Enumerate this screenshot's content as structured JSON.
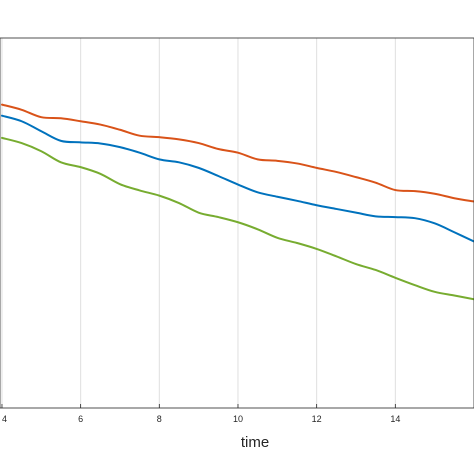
{
  "chart_data": {
    "type": "line",
    "title": "",
    "xlabel": "time",
    "ylabel": "",
    "xlim": [
      3.95,
      16.0
    ],
    "ylim": [
      0,
      1
    ],
    "grid": true,
    "x_ticks": [
      4,
      6,
      8,
      10,
      12,
      14
    ],
    "x_tick_labels": [
      "4",
      "6",
      "8",
      "10",
      "12",
      "14"
    ],
    "series": [
      {
        "color": "#d95319",
        "x": [
          4.0,
          4.5,
          5.0,
          5.5,
          6.0,
          6.5,
          7.0,
          7.5,
          8.0,
          8.5,
          9.0,
          9.5,
          10.0,
          10.5,
          11.0,
          11.5,
          12.0,
          12.5,
          13.0,
          13.5,
          14.0,
          14.5,
          15.0,
          15.5,
          16.0
        ],
        "y": [
          0.82,
          0.806,
          0.786,
          0.783,
          0.775,
          0.766,
          0.752,
          0.736,
          0.732,
          0.726,
          0.716,
          0.7,
          0.69,
          0.672,
          0.668,
          0.661,
          0.649,
          0.638,
          0.624,
          0.609,
          0.589,
          0.586,
          0.579,
          0.567,
          0.558
        ]
      },
      {
        "color": "#0072bd",
        "x": [
          4.0,
          4.5,
          5.0,
          5.5,
          6.0,
          6.5,
          7.0,
          7.5,
          8.0,
          8.5,
          9.0,
          9.5,
          10.0,
          10.5,
          11.0,
          11.5,
          12.0,
          12.5,
          13.0,
          13.5,
          14.0,
          14.5,
          15.0,
          15.5,
          16.0
        ],
        "y": [
          0.79,
          0.775,
          0.748,
          0.722,
          0.718,
          0.715,
          0.705,
          0.69,
          0.672,
          0.664,
          0.649,
          0.627,
          0.604,
          0.583,
          0.571,
          0.56,
          0.548,
          0.538,
          0.528,
          0.518,
          0.516,
          0.513,
          0.499,
          0.475,
          0.45
        ]
      },
      {
        "color": "#77ac30",
        "x": [
          4.0,
          4.5,
          5.0,
          5.5,
          6.0,
          6.5,
          7.0,
          7.5,
          8.0,
          8.5,
          9.0,
          9.5,
          10.0,
          10.5,
          11.0,
          11.5,
          12.0,
          12.5,
          13.0,
          13.5,
          14.0,
          14.5,
          15.0,
          15.5,
          16.0
        ],
        "y": [
          0.73,
          0.716,
          0.694,
          0.664,
          0.651,
          0.633,
          0.605,
          0.588,
          0.574,
          0.554,
          0.528,
          0.516,
          0.502,
          0.483,
          0.46,
          0.446,
          0.43,
          0.41,
          0.389,
          0.373,
          0.352,
          0.332,
          0.314,
          0.304,
          0.294
        ]
      }
    ]
  }
}
